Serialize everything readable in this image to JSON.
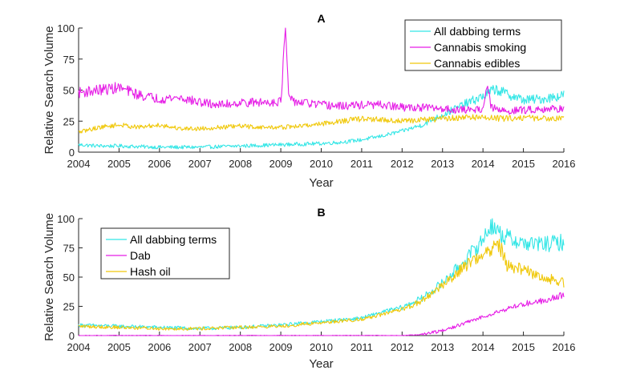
{
  "chart_data": [
    {
      "type": "line",
      "title": "A",
      "xlabel": "Year",
      "ylabel": "Relative Search Volume",
      "xlim": [
        2004,
        2016
      ],
      "ylim": [
        0,
        100
      ],
      "x_ticks": [
        "2004",
        "2005",
        "2006",
        "2007",
        "2008",
        "2009",
        "2010",
        "2011",
        "2012",
        "2013",
        "2014",
        "2015",
        "2016"
      ],
      "y_ticks": [
        "0",
        "25",
        "50",
        "75",
        "100"
      ],
      "legend_position": "top-right",
      "series": [
        {
          "name": "All dabbing terms",
          "color": "#33e6e6",
          "points": [
            [
              2004,
              6
            ],
            [
              2004.5,
              5
            ],
            [
              2005,
              5
            ],
            [
              2006,
              4
            ],
            [
              2007,
              4
            ],
            [
              2008,
              5
            ],
            [
              2009,
              6
            ],
            [
              2010,
              7
            ],
            [
              2010.5,
              8
            ],
            [
              2011,
              10
            ],
            [
              2011.5,
              13
            ],
            [
              2012,
              17
            ],
            [
              2012.5,
              22
            ],
            [
              2013,
              30
            ],
            [
              2013.5,
              38
            ],
            [
              2014,
              45
            ],
            [
              2014.3,
              51
            ],
            [
              2014.5,
              48
            ],
            [
              2015,
              42
            ],
            [
              2015.5,
              43
            ],
            [
              2016,
              46
            ]
          ]
        },
        {
          "name": "Cannabis smoking",
          "color": "#e61ee6",
          "points": [
            [
              2004,
              48
            ],
            [
              2004.5,
              50
            ],
            [
              2005,
              52
            ],
            [
              2005.5,
              46
            ],
            [
              2006,
              43
            ],
            [
              2006.5,
              44
            ],
            [
              2007,
              40
            ],
            [
              2007.5,
              38
            ],
            [
              2008,
              40
            ],
            [
              2008.5,
              40
            ],
            [
              2009,
              41
            ],
            [
              2009.12,
              100
            ],
            [
              2009.2,
              42
            ],
            [
              2009.5,
              40
            ],
            [
              2010,
              38
            ],
            [
              2010.5,
              37
            ],
            [
              2011,
              38
            ],
            [
              2011.5,
              38
            ],
            [
              2012,
              36
            ],
            [
              2012.5,
              36
            ],
            [
              2013,
              35
            ],
            [
              2013.5,
              34
            ],
            [
              2014,
              35
            ],
            [
              2014.1,
              54
            ],
            [
              2014.2,
              36
            ],
            [
              2014.5,
              33
            ],
            [
              2015,
              34
            ],
            [
              2015.5,
              35
            ],
            [
              2016,
              35
            ]
          ]
        },
        {
          "name": "Cannabis edibles",
          "color": "#f0c80a",
          "points": [
            [
              2004,
              16
            ],
            [
              2004.5,
              20
            ],
            [
              2005,
              22
            ],
            [
              2005.5,
              20
            ],
            [
              2006,
              22
            ],
            [
              2006.5,
              19
            ],
            [
              2007,
              19
            ],
            [
              2007.5,
              20
            ],
            [
              2008,
              21
            ],
            [
              2008.5,
              20
            ],
            [
              2009,
              20
            ],
            [
              2009.5,
              21
            ],
            [
              2010,
              23
            ],
            [
              2010.5,
              25
            ],
            [
              2011,
              27
            ],
            [
              2011.5,
              26
            ],
            [
              2012,
              25
            ],
            [
              2012.5,
              26
            ],
            [
              2013,
              27
            ],
            [
              2013.5,
              28
            ],
            [
              2014,
              28
            ],
            [
              2014.5,
              27
            ],
            [
              2015,
              28
            ],
            [
              2015.5,
              27
            ],
            [
              2016,
              28
            ]
          ]
        }
      ]
    },
    {
      "type": "line",
      "title": "B",
      "xlabel": "Year",
      "ylabel": "Relative Search Volume",
      "xlim": [
        2004,
        2016
      ],
      "ylim": [
        0,
        100
      ],
      "x_ticks": [
        "2004",
        "2005",
        "2006",
        "2007",
        "2008",
        "2009",
        "2010",
        "2011",
        "2012",
        "2013",
        "2014",
        "2015",
        "2016"
      ],
      "y_ticks": [
        "0",
        "25",
        "50",
        "75",
        "100"
      ],
      "legend_position": "top-left",
      "series": [
        {
          "name": "All dabbing terms",
          "color": "#33e6e6",
          "points": [
            [
              2004,
              9
            ],
            [
              2005,
              8
            ],
            [
              2006,
              7
            ],
            [
              2007,
              6
            ],
            [
              2008,
              7
            ],
            [
              2009,
              9
            ],
            [
              2010,
              12
            ],
            [
              2011,
              15
            ],
            [
              2011.5,
              20
            ],
            [
              2012,
              24
            ],
            [
              2012.5,
              32
            ],
            [
              2013,
              45
            ],
            [
              2013.5,
              62
            ],
            [
              2014,
              82
            ],
            [
              2014.2,
              95
            ],
            [
              2014.5,
              85
            ],
            [
              2015,
              79
            ],
            [
              2015.5,
              78
            ],
            [
              2016,
              80
            ]
          ]
        },
        {
          "name": "Dab",
          "color": "#e61ee6",
          "points": [
            [
              2004,
              0
            ],
            [
              2005,
              0
            ],
            [
              2006,
              0
            ],
            [
              2007,
              0
            ],
            [
              2008,
              0
            ],
            [
              2009,
              0
            ],
            [
              2010,
              0
            ],
            [
              2011,
              0
            ],
            [
              2012,
              0
            ],
            [
              2012.5,
              1
            ],
            [
              2013,
              4
            ],
            [
              2013.5,
              10
            ],
            [
              2014,
              16
            ],
            [
              2014.5,
              22
            ],
            [
              2015,
              27
            ],
            [
              2015.5,
              30
            ],
            [
              2016,
              35
            ]
          ]
        },
        {
          "name": "Hash oil",
          "color": "#f0c80a",
          "points": [
            [
              2004,
              8
            ],
            [
              2005,
              7
            ],
            [
              2006,
              6
            ],
            [
              2007,
              6
            ],
            [
              2008,
              7
            ],
            [
              2009,
              8
            ],
            [
              2010,
              11
            ],
            [
              2011,
              14
            ],
            [
              2011.5,
              18
            ],
            [
              2012,
              22
            ],
            [
              2012.5,
              30
            ],
            [
              2013,
              43
            ],
            [
              2013.5,
              58
            ],
            [
              2014,
              70
            ],
            [
              2014.4,
              78
            ],
            [
              2014.6,
              60
            ],
            [
              2015,
              56
            ],
            [
              2015.5,
              50
            ],
            [
              2016,
              45
            ]
          ]
        }
      ]
    }
  ]
}
